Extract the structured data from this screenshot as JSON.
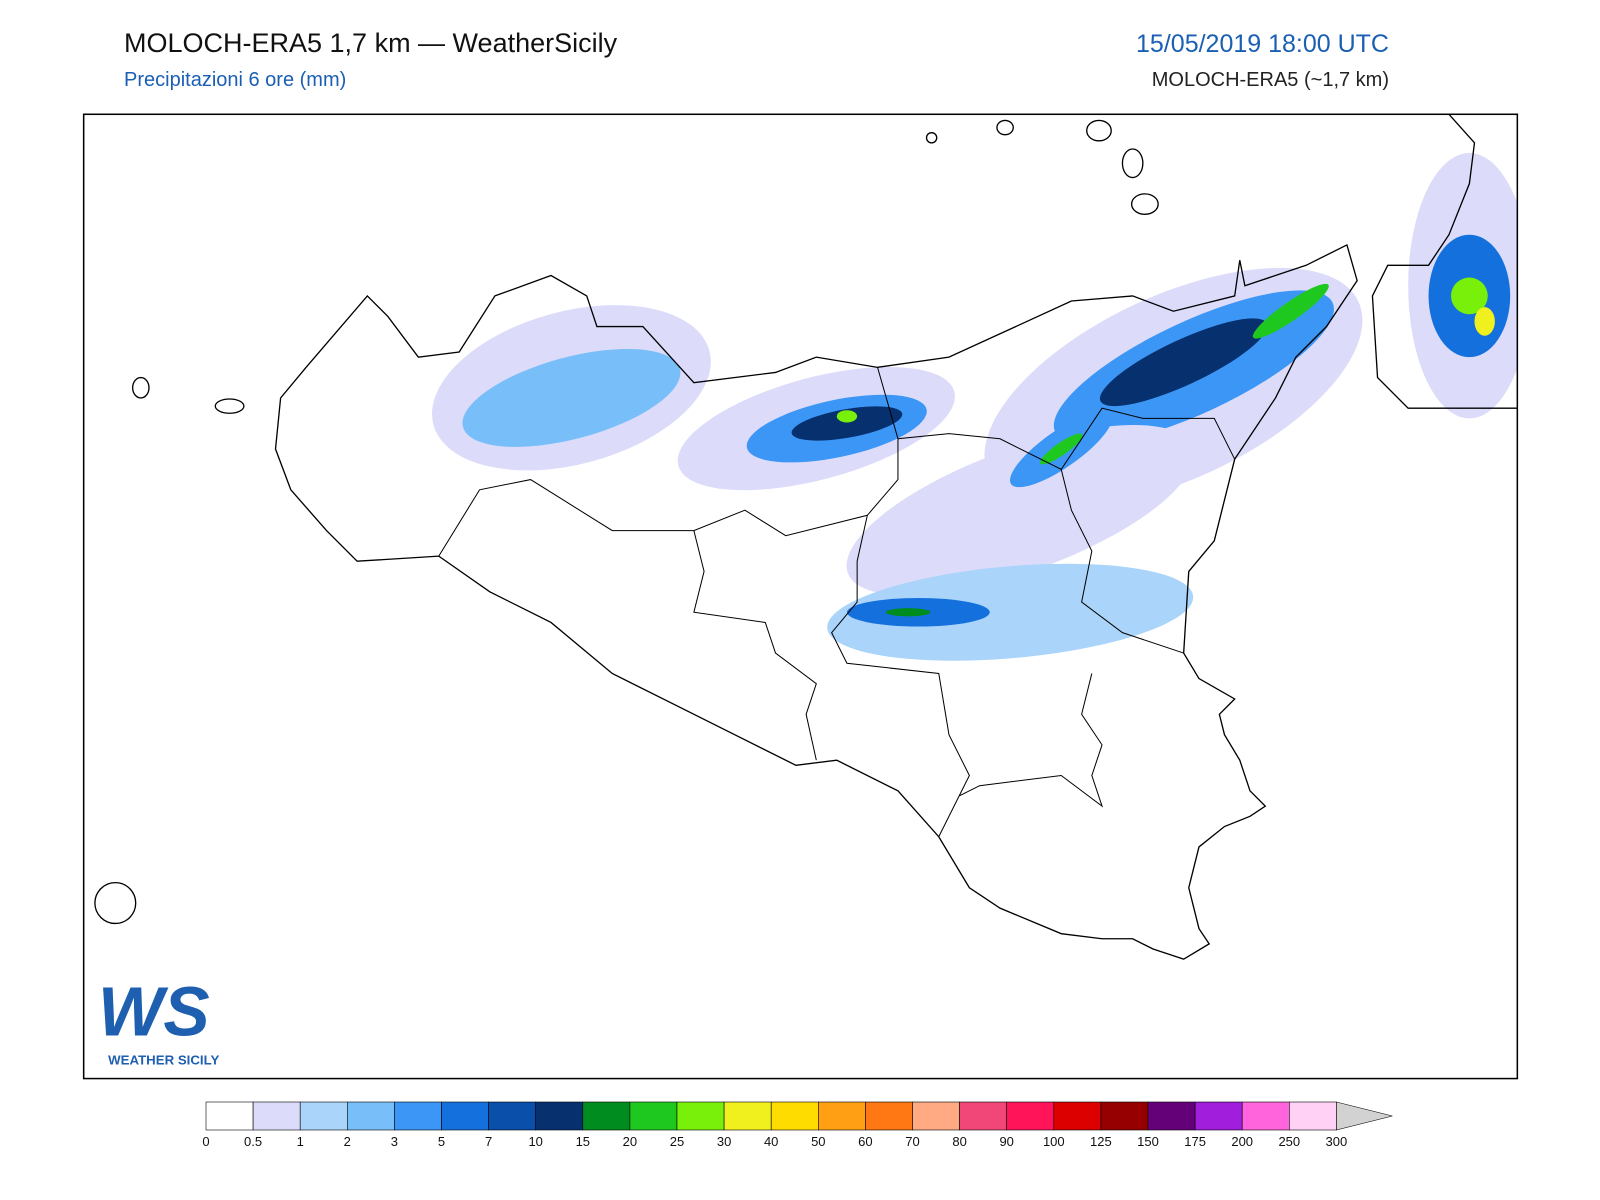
{
  "header": {
    "title": "MOLOCH-ERA5 1,7 km — WeatherSicily",
    "subtitle": "Precipitazioni 6 ore (mm)",
    "datetime": "15/05/2019 18:00 UTC",
    "model": "MOLOCH-ERA5 (~1,7 km)"
  },
  "logo": {
    "mark": "WS",
    "name": "WEATHER SICILY"
  },
  "colorbar": {
    "levels": [
      0,
      0.5,
      1,
      2,
      3,
      5,
      7,
      10,
      15,
      20,
      25,
      30,
      40,
      50,
      60,
      70,
      80,
      90,
      100,
      125,
      150,
      175,
      200,
      250,
      300
    ],
    "colors": [
      "#ffffff",
      "#dcdcfa",
      "#aad4fa",
      "#78bef8",
      "#3c96f5",
      "#1470dc",
      "#0a50aa",
      "#06306e",
      "#008c1e",
      "#1ec81e",
      "#78f00a",
      "#f0f01e",
      "#ffdc00",
      "#ffa014",
      "#ff7814",
      "#ffaa82",
      "#f04678",
      "#ff145a",
      "#dc0000",
      "#960000",
      "#640078",
      "#a01edc",
      "#ff64dc",
      "#ffd2f5"
    ],
    "over_color": "#d2d2d2"
  }
}
